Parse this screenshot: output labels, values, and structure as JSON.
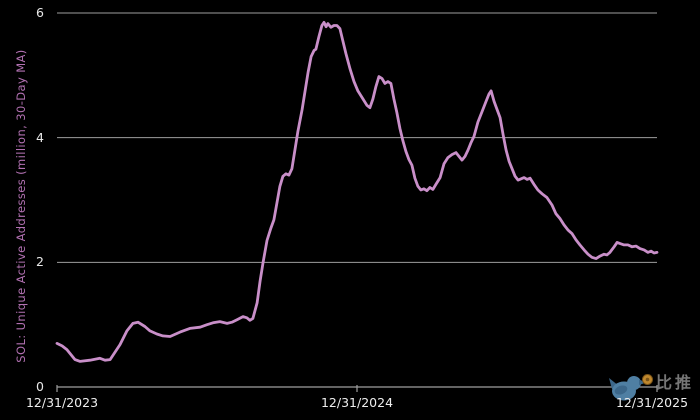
{
  "watermark": {
    "brand_text": "比推",
    "bird_icon": "bird-with-coin",
    "bird_color": "#4f7fa3",
    "bird_dark": "#3c678a",
    "coin_color": "#c0882e",
    "coin_edge": "#7a5418",
    "text_color": "#7d7d7d"
  },
  "axis_style": {
    "grid_color": "#9e9e9e",
    "tick_label_color": "#e8e8e8",
    "ylabel_color": "#b271b2"
  },
  "chart_data": {
    "type": "line",
    "title": "",
    "xlabel": "",
    "ylabel": "SOL: Unique Active Addresses (million, 30-Day MA)",
    "ylim": [
      0,
      6
    ],
    "xlim_years": [
      0,
      2
    ],
    "grid": "horizontal",
    "legend": "none",
    "y_ticks": [
      0,
      2,
      4,
      6
    ],
    "y_gridlines": [
      2,
      4,
      6
    ],
    "x_ticks": [
      {
        "pos": 0,
        "label": "12/31/2023"
      },
      {
        "pos": 1,
        "label": "12/31/2024"
      },
      {
        "pos": 2,
        "label": "12/31/2025"
      }
    ],
    "line_color": "#c98fc9",
    "series": [
      {
        "name": "SOL unique active addresses, 30-day MA (million)",
        "points": [
          [
            0.0,
            0.7
          ],
          [
            0.017,
            0.66
          ],
          [
            0.033,
            0.6
          ],
          [
            0.06,
            0.44
          ],
          [
            0.077,
            0.41
          ],
          [
            0.11,
            0.43
          ],
          [
            0.143,
            0.46
          ],
          [
            0.16,
            0.43
          ],
          [
            0.177,
            0.44
          ],
          [
            0.21,
            0.68
          ],
          [
            0.233,
            0.9
          ],
          [
            0.253,
            1.02
          ],
          [
            0.27,
            1.04
          ],
          [
            0.293,
            0.97
          ],
          [
            0.31,
            0.9
          ],
          [
            0.333,
            0.85
          ],
          [
            0.353,
            0.82
          ],
          [
            0.377,
            0.81
          ],
          [
            0.41,
            0.88
          ],
          [
            0.443,
            0.94
          ],
          [
            0.477,
            0.96
          ],
          [
            0.5,
            1.0
          ],
          [
            0.52,
            1.03
          ],
          [
            0.543,
            1.05
          ],
          [
            0.567,
            1.02
          ],
          [
            0.583,
            1.04
          ],
          [
            0.6,
            1.08
          ],
          [
            0.62,
            1.13
          ],
          [
            0.633,
            1.11
          ],
          [
            0.643,
            1.07
          ],
          [
            0.653,
            1.1
          ],
          [
            0.667,
            1.35
          ],
          [
            0.677,
            1.7
          ],
          [
            0.687,
            2.0
          ],
          [
            0.7,
            2.35
          ],
          [
            0.713,
            2.55
          ],
          [
            0.723,
            2.68
          ],
          [
            0.733,
            2.95
          ],
          [
            0.743,
            3.22
          ],
          [
            0.753,
            3.38
          ],
          [
            0.763,
            3.42
          ],
          [
            0.773,
            3.4
          ],
          [
            0.783,
            3.5
          ],
          [
            0.793,
            3.8
          ],
          [
            0.803,
            4.1
          ],
          [
            0.817,
            4.45
          ],
          [
            0.827,
            4.75
          ],
          [
            0.837,
            5.05
          ],
          [
            0.847,
            5.3
          ],
          [
            0.857,
            5.4
          ],
          [
            0.863,
            5.42
          ],
          [
            0.873,
            5.62
          ],
          [
            0.883,
            5.8
          ],
          [
            0.89,
            5.85
          ],
          [
            0.897,
            5.78
          ],
          [
            0.903,
            5.83
          ],
          [
            0.913,
            5.77
          ],
          [
            0.923,
            5.8
          ],
          [
            0.933,
            5.8
          ],
          [
            0.943,
            5.75
          ],
          [
            0.953,
            5.55
          ],
          [
            0.963,
            5.35
          ],
          [
            0.977,
            5.1
          ],
          [
            0.99,
            4.9
          ],
          [
            1.003,
            4.75
          ],
          [
            1.02,
            4.62
          ],
          [
            1.033,
            4.52
          ],
          [
            1.043,
            4.48
          ],
          [
            1.053,
            4.62
          ],
          [
            1.063,
            4.82
          ],
          [
            1.073,
            4.98
          ],
          [
            1.083,
            4.95
          ],
          [
            1.093,
            4.87
          ],
          [
            1.103,
            4.9
          ],
          [
            1.113,
            4.87
          ],
          [
            1.123,
            4.62
          ],
          [
            1.133,
            4.4
          ],
          [
            1.143,
            4.15
          ],
          [
            1.153,
            3.95
          ],
          [
            1.163,
            3.78
          ],
          [
            1.173,
            3.65
          ],
          [
            1.183,
            3.56
          ],
          [
            1.193,
            3.35
          ],
          [
            1.203,
            3.22
          ],
          [
            1.213,
            3.16
          ],
          [
            1.223,
            3.18
          ],
          [
            1.233,
            3.15
          ],
          [
            1.243,
            3.2
          ],
          [
            1.253,
            3.17
          ],
          [
            1.263,
            3.25
          ],
          [
            1.277,
            3.36
          ],
          [
            1.29,
            3.58
          ],
          [
            1.303,
            3.68
          ],
          [
            1.317,
            3.73
          ],
          [
            1.33,
            3.76
          ],
          [
            1.34,
            3.7
          ],
          [
            1.35,
            3.64
          ],
          [
            1.36,
            3.7
          ],
          [
            1.37,
            3.8
          ],
          [
            1.38,
            3.92
          ],
          [
            1.39,
            4.02
          ],
          [
            1.403,
            4.25
          ],
          [
            1.417,
            4.42
          ],
          [
            1.43,
            4.58
          ],
          [
            1.44,
            4.7
          ],
          [
            1.447,
            4.75
          ],
          [
            1.457,
            4.58
          ],
          [
            1.467,
            4.45
          ],
          [
            1.477,
            4.32
          ],
          [
            1.487,
            4.05
          ],
          [
            1.497,
            3.8
          ],
          [
            1.507,
            3.62
          ],
          [
            1.517,
            3.5
          ],
          [
            1.527,
            3.38
          ],
          [
            1.537,
            3.32
          ],
          [
            1.547,
            3.34
          ],
          [
            1.557,
            3.36
          ],
          [
            1.567,
            3.33
          ],
          [
            1.577,
            3.35
          ],
          [
            1.59,
            3.25
          ],
          [
            1.603,
            3.16
          ],
          [
            1.617,
            3.1
          ],
          [
            1.633,
            3.04
          ],
          [
            1.65,
            2.92
          ],
          [
            1.663,
            2.78
          ],
          [
            1.677,
            2.7
          ],
          [
            1.69,
            2.6
          ],
          [
            1.703,
            2.52
          ],
          [
            1.717,
            2.46
          ],
          [
            1.73,
            2.36
          ],
          [
            1.743,
            2.28
          ],
          [
            1.757,
            2.2
          ],
          [
            1.77,
            2.13
          ],
          [
            1.783,
            2.08
          ],
          [
            1.797,
            2.06
          ],
          [
            1.81,
            2.1
          ],
          [
            1.823,
            2.13
          ],
          [
            1.833,
            2.12
          ],
          [
            1.843,
            2.16
          ],
          [
            1.857,
            2.25
          ],
          [
            1.867,
            2.32
          ],
          [
            1.877,
            2.3
          ],
          [
            1.89,
            2.28
          ],
          [
            1.903,
            2.28
          ],
          [
            1.917,
            2.25
          ],
          [
            1.93,
            2.26
          ],
          [
            1.943,
            2.22
          ],
          [
            1.957,
            2.2
          ],
          [
            1.97,
            2.16
          ],
          [
            1.98,
            2.18
          ],
          [
            1.99,
            2.15
          ],
          [
            2.0,
            2.16
          ]
        ]
      }
    ]
  }
}
